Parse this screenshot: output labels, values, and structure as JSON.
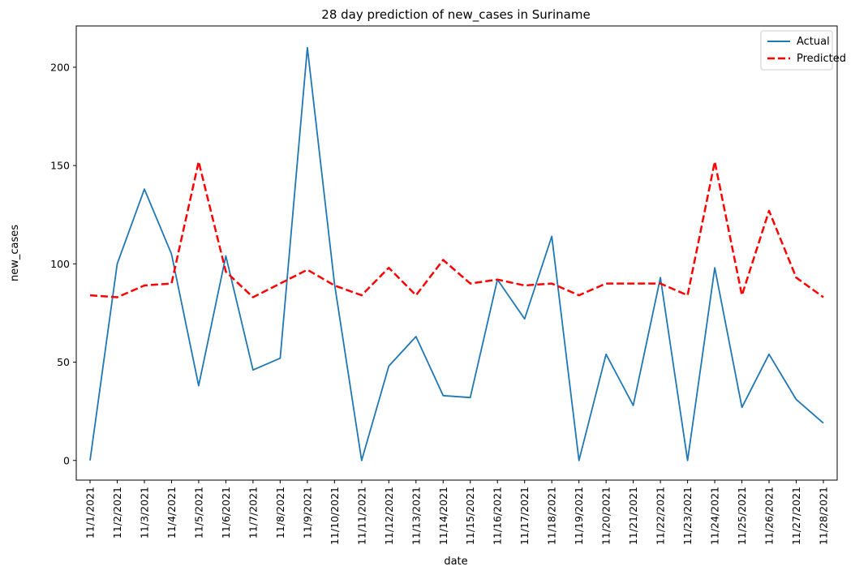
{
  "chart_data": {
    "type": "line",
    "title": "28 day prediction of new_cases in Suriname",
    "xlabel": "date",
    "ylabel": "new_cases",
    "categories": [
      "11/1/2021",
      "11/2/2021",
      "11/3/2021",
      "11/4/2021",
      "11/5/2021",
      "11/6/2021",
      "11/7/2021",
      "11/8/2021",
      "11/9/2021",
      "11/10/2021",
      "11/11/2021",
      "11/12/2021",
      "11/13/2021",
      "11/14/2021",
      "11/15/2021",
      "11/16/2021",
      "11/17/2021",
      "11/18/2021",
      "11/19/2021",
      "11/20/2021",
      "11/21/2021",
      "11/22/2021",
      "11/23/2021",
      "11/24/2021",
      "11/25/2021",
      "11/26/2021",
      "11/27/2021",
      "11/28/2021"
    ],
    "yticks": [
      0,
      50,
      100,
      150,
      200
    ],
    "ylim": [
      -10,
      221
    ],
    "grid": false,
    "legend_position": "top-right",
    "series": [
      {
        "name": "Actual",
        "color": "#1f77b4",
        "style": "solid",
        "values": [
          0,
          100,
          138,
          105,
          38,
          104,
          46,
          52,
          210,
          90,
          0,
          48,
          63,
          33,
          32,
          92,
          72,
          114,
          0,
          54,
          28,
          93,
          0,
          98,
          27,
          54,
          31,
          19
        ]
      },
      {
        "name": "Predicted",
        "color": "#ff0000",
        "style": "dashed",
        "values": [
          84,
          83,
          89,
          90,
          152,
          96,
          83,
          90,
          97,
          89,
          84,
          98,
          84,
          102,
          90,
          92,
          89,
          90,
          84,
          90,
          90,
          90,
          84,
          152,
          84,
          127,
          93,
          83
        ]
      }
    ]
  }
}
